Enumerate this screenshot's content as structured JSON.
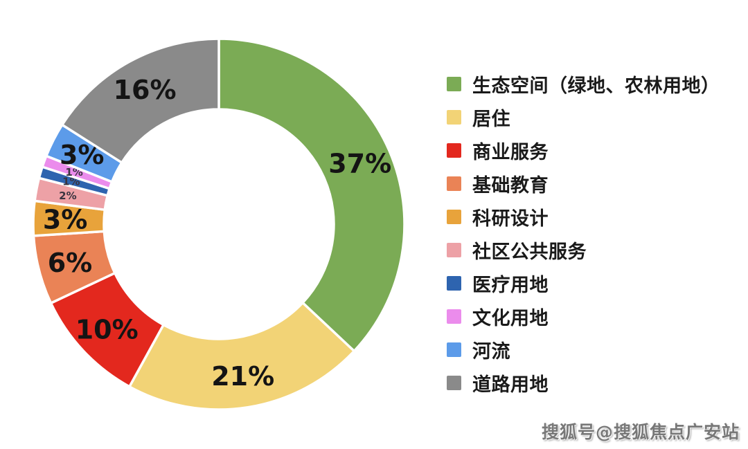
{
  "chart_data": {
    "type": "pie",
    "subtype": "donut",
    "title": "",
    "units": "percent",
    "total": 100,
    "direction": "clockwise",
    "start_angle_deg": 0,
    "inner_radius_ratio": 0.62,
    "legend_position": "right",
    "segments": [
      {
        "label": "生态空间（绿地、农林用地）",
        "value": 37,
        "display": "37%",
        "color": "#7BAB55"
      },
      {
        "label": "居住",
        "value": 21,
        "display": "21%",
        "color": "#F2D376"
      },
      {
        "label": "商业服务",
        "value": 10,
        "display": "10%",
        "color": "#E3281E"
      },
      {
        "label": "基础教育",
        "value": 6,
        "display": "6%",
        "color": "#EA8356"
      },
      {
        "label": "科研设计",
        "value": 3,
        "display": "3%",
        "color": "#E8A33B"
      },
      {
        "label": "社区公共服务",
        "value": 2,
        "display": "2%",
        "color": "#EDA1A6"
      },
      {
        "label": "医疗用地",
        "value": 1,
        "display": "1%",
        "color": "#2E64AF"
      },
      {
        "label": "文化用地",
        "value": 1,
        "display": "1%",
        "color": "#EB8CEC"
      },
      {
        "label": "河流",
        "value": 3,
        "display": "3%",
        "color": "#5C9BE9"
      },
      {
        "label": "道路用地",
        "value": 16,
        "display": "16%",
        "color": "#8A8A8A"
      }
    ]
  },
  "watermark": {
    "text": "搜狐号@搜狐焦点广安站"
  }
}
